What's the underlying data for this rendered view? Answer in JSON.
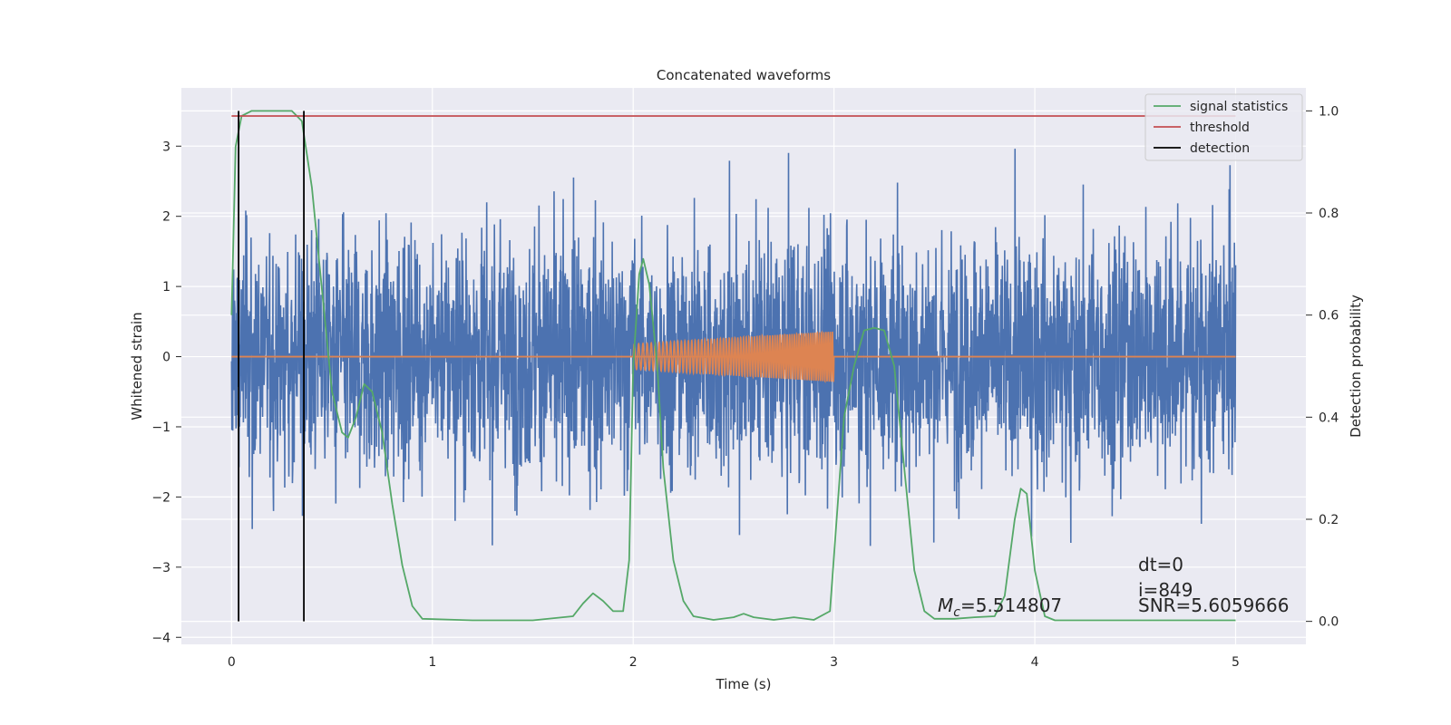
{
  "chart_data": {
    "type": "line",
    "title": "Concatenated waveforms",
    "xlabel": "Time (s)",
    "ylabel": "Whitened strain",
    "y2label": "Detection probability",
    "xlim": [
      -0.25,
      5.35
    ],
    "ylim": [
      -4.1,
      3.83
    ],
    "y2lim": [
      -0.045,
      1.045
    ],
    "xticks": [
      0,
      1,
      2,
      3,
      4,
      5
    ],
    "yticks": [
      -4,
      -3,
      -2,
      -1,
      0,
      1,
      2,
      3
    ],
    "y2ticks": [
      0.0,
      0.2,
      0.4,
      0.6,
      0.8,
      1.0
    ],
    "grid": true,
    "legend_position": "top-right",
    "series": [
      {
        "name": "",
        "axis": "left",
        "color": "#4c72b0",
        "kind": "noise",
        "x_range": [
          0,
          5
        ],
        "approx_envelope": [
          -3.2,
          3.4
        ]
      },
      {
        "name": "",
        "axis": "left",
        "color": "#dd8452",
        "kind": "chirp",
        "x_range": [
          2,
          3
        ],
        "amplitude_start": 0.18,
        "amplitude_end": 0.36,
        "baseline": 0
      },
      {
        "name": "signal statistics",
        "axis": "right",
        "color": "#55a868",
        "x": [
          0,
          0.02,
          0.05,
          0.1,
          0.2,
          0.3,
          0.35,
          0.4,
          0.45,
          0.5,
          0.55,
          0.58,
          0.62,
          0.66,
          0.7,
          0.75,
          0.8,
          0.85,
          0.9,
          0.95,
          1.2,
          1.5,
          1.7,
          1.75,
          1.8,
          1.85,
          1.9,
          1.95,
          1.98,
          2.0,
          2.03,
          2.05,
          2.08,
          2.12,
          2.15,
          2.2,
          2.25,
          2.3,
          2.4,
          2.5,
          2.55,
          2.6,
          2.7,
          2.8,
          2.9,
          2.98,
          3.05,
          3.1,
          3.15,
          3.2,
          3.25,
          3.3,
          3.35,
          3.4,
          3.45,
          3.5,
          3.6,
          3.7,
          3.8,
          3.85,
          3.9,
          3.93,
          3.96,
          4.0,
          4.05,
          4.1,
          4.5,
          5.0
        ],
        "y": [
          0.6,
          0.93,
          0.99,
          1.0,
          1.0,
          1.0,
          0.98,
          0.85,
          0.65,
          0.45,
          0.37,
          0.36,
          0.4,
          0.465,
          0.45,
          0.37,
          0.23,
          0.11,
          0.03,
          0.005,
          0.002,
          0.002,
          0.01,
          0.035,
          0.055,
          0.04,
          0.02,
          0.02,
          0.12,
          0.5,
          0.68,
          0.71,
          0.66,
          0.5,
          0.3,
          0.12,
          0.04,
          0.01,
          0.003,
          0.008,
          0.015,
          0.008,
          0.003,
          0.008,
          0.003,
          0.02,
          0.4,
          0.5,
          0.57,
          0.575,
          0.57,
          0.5,
          0.3,
          0.1,
          0.02,
          0.005,
          0.005,
          0.008,
          0.01,
          0.05,
          0.2,
          0.26,
          0.25,
          0.1,
          0.01,
          0.002,
          0.002,
          0.002
        ]
      },
      {
        "name": "threshold",
        "axis": "right",
        "color": "#c44e52",
        "x": [
          0,
          5
        ],
        "y": [
          0.99,
          0.99
        ]
      }
    ],
    "detections": {
      "name": "detection",
      "color": "#000000",
      "x": [
        0.035,
        0.36
      ]
    },
    "annotations": {
      "mc_symbol": "M",
      "mc_subscript": "c",
      "mc_value": "=5.514807",
      "dt": "dt=0",
      "i": "i=849",
      "snr": "SNR=5.6059666"
    }
  }
}
